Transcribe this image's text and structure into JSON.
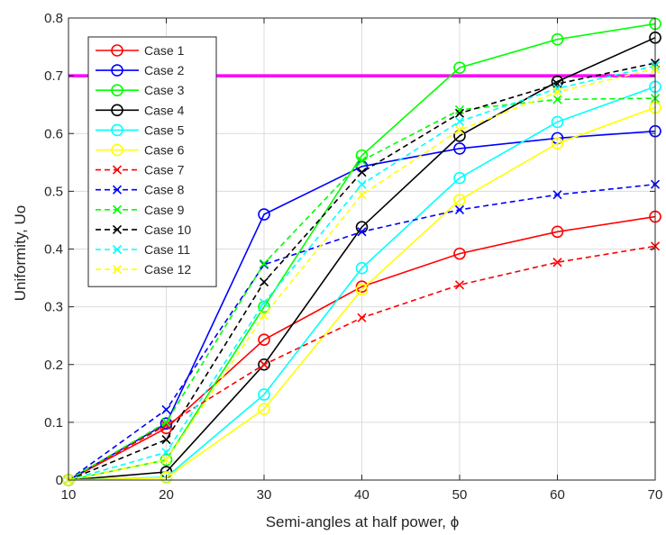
{
  "chart_data": {
    "type": "line",
    "xlabel": "Semi-angles at half power, ϕ",
    "ylabel": "Uniformity, Uo",
    "xlim": [
      10,
      70
    ],
    "ylim": [
      0,
      0.8
    ],
    "x_ticks": [
      "10",
      "20",
      "30",
      "40",
      "50",
      "60",
      "70"
    ],
    "y_ticks": [
      "0",
      "0.1",
      "0.2",
      "0.3",
      "0.4",
      "0.5",
      "0.6",
      "0.7",
      "0.8"
    ],
    "grid": true,
    "legend_position": "top-left",
    "x": [
      10,
      20,
      30,
      40,
      50,
      60,
      70
    ],
    "reference_line": {
      "y": 0.7,
      "color": "#ff00ff"
    },
    "series": [
      {
        "name": "Case 1",
        "color": "#ff0000",
        "marker": "circle",
        "dashed": false,
        "values": [
          0,
          0.09,
          0.243,
          0.335,
          0.392,
          0.43,
          0.456
        ]
      },
      {
        "name": "Case 2",
        "color": "#0000ff",
        "marker": "circle",
        "dashed": false,
        "values": [
          0,
          0.098,
          0.46,
          0.543,
          0.574,
          0.592,
          0.604
        ]
      },
      {
        "name": "Case 3",
        "color": "#00ff00",
        "marker": "circle",
        "dashed": false,
        "values": [
          0,
          0.035,
          0.3,
          0.562,
          0.714,
          0.763,
          0.79
        ]
      },
      {
        "name": "Case 4",
        "color": "#000000",
        "marker": "circle",
        "dashed": false,
        "values": [
          0,
          0.014,
          0.2,
          0.438,
          0.596,
          0.69,
          0.766
        ]
      },
      {
        "name": "Case 5",
        "color": "#00ffff",
        "marker": "circle",
        "dashed": false,
        "values": [
          0,
          0.005,
          0.148,
          0.367,
          0.523,
          0.62,
          0.681
        ]
      },
      {
        "name": "Case 6",
        "color": "#ffff00",
        "marker": "circle",
        "dashed": false,
        "values": [
          0,
          0.004,
          0.123,
          0.33,
          0.485,
          0.583,
          0.645
        ]
      },
      {
        "name": "Case 7",
        "color": "#ff0000",
        "marker": "x",
        "dashed": true,
        "values": [
          0,
          0.095,
          0.2,
          0.281,
          0.338,
          0.377,
          0.405
        ]
      },
      {
        "name": "Case 8",
        "color": "#0000ff",
        "marker": "x",
        "dashed": true,
        "values": [
          0,
          0.122,
          0.373,
          0.43,
          0.468,
          0.494,
          0.512
        ]
      },
      {
        "name": "Case 9",
        "color": "#00ff00",
        "marker": "x",
        "dashed": true,
        "values": [
          0,
          0.1,
          0.375,
          0.553,
          0.641,
          0.659,
          0.661
        ]
      },
      {
        "name": "Case 10",
        "color": "#000000",
        "marker": "x",
        "dashed": true,
        "values": [
          0,
          0.07,
          0.343,
          0.533,
          0.635,
          0.686,
          0.722
        ]
      },
      {
        "name": "Case 11",
        "color": "#00ffff",
        "marker": "x",
        "dashed": true,
        "values": [
          0,
          0.048,
          0.307,
          0.512,
          0.621,
          0.678,
          0.717
        ]
      },
      {
        "name": "Case 12",
        "color": "#ffff00",
        "marker": "x",
        "dashed": true,
        "values": [
          0,
          0.035,
          0.285,
          0.494,
          0.606,
          0.672,
          0.712
        ]
      }
    ]
  }
}
